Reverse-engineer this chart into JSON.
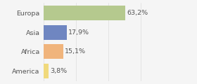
{
  "categories": [
    "Europa",
    "Asia",
    "Africa",
    "America"
  ],
  "values": [
    63.2,
    17.9,
    15.1,
    3.8
  ],
  "labels": [
    "63,2%",
    "17,9%",
    "15,1%",
    "3,8%"
  ],
  "bar_colors": [
    "#b5c98e",
    "#6f86c1",
    "#f0b47c",
    "#f0d97c"
  ],
  "background_color": "#f5f5f5",
  "xlim": [
    0,
    100
  ],
  "bar_height": 0.78,
  "label_fontsize": 6.8,
  "tick_fontsize": 6.8,
  "grid_color": "#dddddd",
  "text_color": "#555555"
}
